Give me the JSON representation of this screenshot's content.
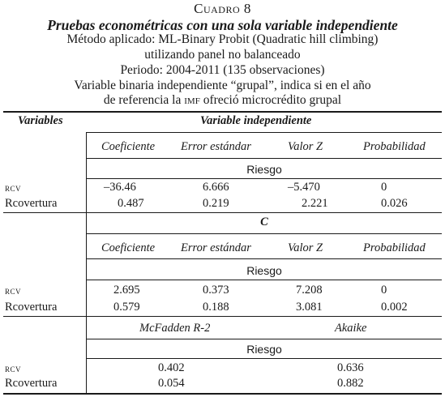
{
  "header": {
    "caption": "Cuadro 8",
    "title": "Pruebas econométricas con una sola variable independiente",
    "method_line": "Método aplicado: ML-Binary Probit (Quadratic hill climbing)",
    "panel_line": "utilizando panel no balanceado",
    "period_line": "Periodo: 2004-2011 (135 observaciones)",
    "variable_line_1": "Variable binaria independiente “grupal”, indica si en el año",
    "variable_line_2_prefix": "de referencia la ",
    "variable_line_2_abbrev": "imf",
    "variable_line_2_suffix": " ofreció microcrédito grupal"
  },
  "table": {
    "col_variables": "Variables",
    "col_independent": "Variable independiente",
    "stat_headers": [
      "Coeficiente",
      "Error estándar",
      "Valor Z",
      "Probabilidad"
    ],
    "section_label": "Riesgo",
    "block1": {
      "rows": [
        {
          "name": "rcv",
          "values": [
            "–36.46",
            "6.666",
            "–5.470",
            "0"
          ]
        },
        {
          "name": "Rcovertura",
          "values": [
            "0.487",
            "0.219",
            "2.221",
            "0.026"
          ]
        }
      ]
    },
    "block2": {
      "label": "C",
      "rows": [
        {
          "name": "rcv",
          "values": [
            "2.695",
            "0.373",
            "7.208",
            "0"
          ]
        },
        {
          "name": "Rcovertura",
          "values": [
            "0.579",
            "0.188",
            "3.081",
            "0.002"
          ]
        }
      ]
    },
    "block3": {
      "headers": [
        "McFadden R-2",
        "Akaike"
      ],
      "rows": [
        {
          "name": "rcv",
          "values": [
            "0.402",
            "0.636"
          ]
        },
        {
          "name": "Rcovertura",
          "values": [
            "0.054",
            "0.882"
          ]
        }
      ]
    }
  }
}
